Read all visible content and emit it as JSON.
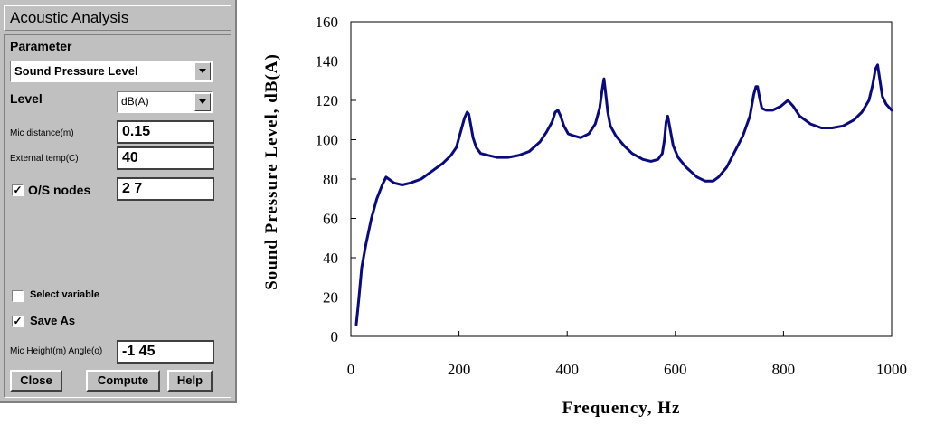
{
  "dialog": {
    "title": "Acoustic Analysis",
    "parameter_label": "Parameter",
    "parameter_value": "Sound Pressure Level",
    "level_label": "Level",
    "level_value": "dB(A)",
    "mic_distance_label": "Mic distance(m)",
    "mic_distance_value": "0.15",
    "external_temp_label": "External temp(C)",
    "external_temp_value": "40",
    "os_nodes_label": "O/S nodes",
    "os_nodes_checked": true,
    "os_nodes_value": "2 7",
    "select_variable_label": "Select variable",
    "select_variable_checked": false,
    "save_as_label": "Save As",
    "save_as_checked": true,
    "mic_height_label": "Mic Height(m) Angle(o)",
    "mic_height_value": "-1 45",
    "buttons": {
      "close": "Close",
      "compute": "Compute",
      "help": "Help"
    },
    "check_mark": "✓"
  },
  "chart_data": {
    "type": "line",
    "xlabel": "Frequency, Hz",
    "ylabel": "Sound Pressure Level, dB(A)",
    "xlim": [
      0,
      1000
    ],
    "ylim": [
      0,
      160
    ],
    "xticks": [
      0,
      200,
      400,
      600,
      800,
      1000
    ],
    "yticks": [
      0,
      20,
      40,
      60,
      80,
      100,
      120,
      140,
      160
    ],
    "grid": false,
    "color": "#0a0a80",
    "series": [
      {
        "x": [
          10,
          15,
          20,
          28,
          38,
          48,
          58,
          65,
          70,
          80,
          95,
          110,
          130,
          150,
          170,
          185,
          195,
          203,
          210,
          215,
          218,
          222,
          226,
          232,
          240,
          255,
          270,
          290,
          310,
          330,
          350,
          362,
          372,
          378,
          383,
          388,
          394,
          402,
          412,
          425,
          440,
          452,
          460,
          465,
          468,
          471,
          475,
          480,
          490,
          505,
          520,
          540,
          555,
          568,
          576,
          580,
          583,
          586,
          590,
          596,
          605,
          620,
          640,
          655,
          670,
          680,
          695,
          710,
          725,
          738,
          745,
          749,
          752,
          756,
          760,
          768,
          780,
          795,
          808,
          818,
          830,
          850,
          870,
          890,
          910,
          930,
          945,
          958,
          965,
          970,
          974,
          978,
          983,
          990,
          1000
        ],
        "y": [
          6,
          20,
          35,
          47,
          60,
          70,
          77,
          81,
          80,
          78,
          77,
          78,
          80,
          84,
          88,
          92,
          96,
          104,
          111,
          114,
          113,
          107,
          101,
          96,
          93,
          92,
          91,
          91,
          92,
          94,
          99,
          104,
          109,
          114,
          115,
          112,
          107,
          103,
          102,
          101,
          103,
          108,
          116,
          126,
          131,
          124,
          114,
          107,
          102,
          97,
          93,
          90,
          89,
          90,
          93,
          100,
          109,
          112,
          106,
          97,
          91,
          86,
          81,
          79,
          79,
          81,
          86,
          94,
          102,
          112,
          123,
          127,
          127,
          121,
          116,
          115,
          115,
          117,
          120,
          117,
          112,
          108,
          106,
          106,
          107,
          110,
          114,
          120,
          128,
          136,
          138,
          131,
          122,
          118,
          115
        ]
      }
    ]
  }
}
